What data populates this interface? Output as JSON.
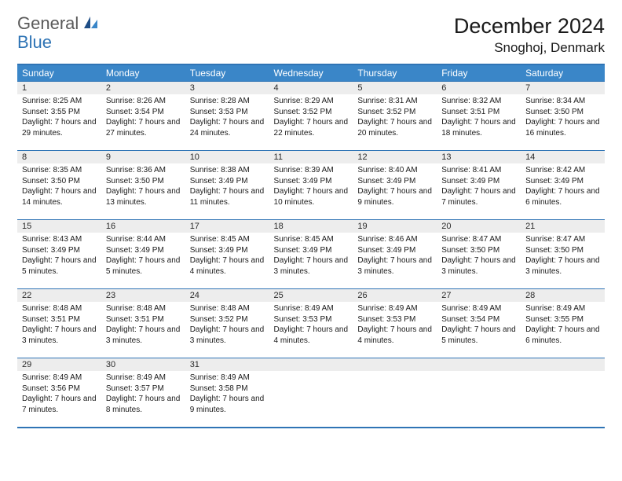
{
  "logo": {
    "line1": "General",
    "line2": "Blue"
  },
  "title": "December 2024",
  "location": "Snoghoj, Denmark",
  "colors": {
    "brand": "#2f74b5",
    "header_bg": "#3a86c8",
    "daynum_bg": "#ededed",
    "text": "#1a1a1a"
  },
  "weekday_labels": [
    "Sunday",
    "Monday",
    "Tuesday",
    "Wednesday",
    "Thursday",
    "Friday",
    "Saturday"
  ],
  "rows": [
    [
      {
        "num": "1",
        "sunrise": "Sunrise: 8:25 AM",
        "sunset": "Sunset: 3:55 PM",
        "daylight": "Daylight: 7 hours and 29 minutes."
      },
      {
        "num": "2",
        "sunrise": "Sunrise: 8:26 AM",
        "sunset": "Sunset: 3:54 PM",
        "daylight": "Daylight: 7 hours and 27 minutes."
      },
      {
        "num": "3",
        "sunrise": "Sunrise: 8:28 AM",
        "sunset": "Sunset: 3:53 PM",
        "daylight": "Daylight: 7 hours and 24 minutes."
      },
      {
        "num": "4",
        "sunrise": "Sunrise: 8:29 AM",
        "sunset": "Sunset: 3:52 PM",
        "daylight": "Daylight: 7 hours and 22 minutes."
      },
      {
        "num": "5",
        "sunrise": "Sunrise: 8:31 AM",
        "sunset": "Sunset: 3:52 PM",
        "daylight": "Daylight: 7 hours and 20 minutes."
      },
      {
        "num": "6",
        "sunrise": "Sunrise: 8:32 AM",
        "sunset": "Sunset: 3:51 PM",
        "daylight": "Daylight: 7 hours and 18 minutes."
      },
      {
        "num": "7",
        "sunrise": "Sunrise: 8:34 AM",
        "sunset": "Sunset: 3:50 PM",
        "daylight": "Daylight: 7 hours and 16 minutes."
      }
    ],
    [
      {
        "num": "8",
        "sunrise": "Sunrise: 8:35 AM",
        "sunset": "Sunset: 3:50 PM",
        "daylight": "Daylight: 7 hours and 14 minutes."
      },
      {
        "num": "9",
        "sunrise": "Sunrise: 8:36 AM",
        "sunset": "Sunset: 3:50 PM",
        "daylight": "Daylight: 7 hours and 13 minutes."
      },
      {
        "num": "10",
        "sunrise": "Sunrise: 8:38 AM",
        "sunset": "Sunset: 3:49 PM",
        "daylight": "Daylight: 7 hours and 11 minutes."
      },
      {
        "num": "11",
        "sunrise": "Sunrise: 8:39 AM",
        "sunset": "Sunset: 3:49 PM",
        "daylight": "Daylight: 7 hours and 10 minutes."
      },
      {
        "num": "12",
        "sunrise": "Sunrise: 8:40 AM",
        "sunset": "Sunset: 3:49 PM",
        "daylight": "Daylight: 7 hours and 9 minutes."
      },
      {
        "num": "13",
        "sunrise": "Sunrise: 8:41 AM",
        "sunset": "Sunset: 3:49 PM",
        "daylight": "Daylight: 7 hours and 7 minutes."
      },
      {
        "num": "14",
        "sunrise": "Sunrise: 8:42 AM",
        "sunset": "Sunset: 3:49 PM",
        "daylight": "Daylight: 7 hours and 6 minutes."
      }
    ],
    [
      {
        "num": "15",
        "sunrise": "Sunrise: 8:43 AM",
        "sunset": "Sunset: 3:49 PM",
        "daylight": "Daylight: 7 hours and 5 minutes."
      },
      {
        "num": "16",
        "sunrise": "Sunrise: 8:44 AM",
        "sunset": "Sunset: 3:49 PM",
        "daylight": "Daylight: 7 hours and 5 minutes."
      },
      {
        "num": "17",
        "sunrise": "Sunrise: 8:45 AM",
        "sunset": "Sunset: 3:49 PM",
        "daylight": "Daylight: 7 hours and 4 minutes."
      },
      {
        "num": "18",
        "sunrise": "Sunrise: 8:45 AM",
        "sunset": "Sunset: 3:49 PM",
        "daylight": "Daylight: 7 hours and 3 minutes."
      },
      {
        "num": "19",
        "sunrise": "Sunrise: 8:46 AM",
        "sunset": "Sunset: 3:49 PM",
        "daylight": "Daylight: 7 hours and 3 minutes."
      },
      {
        "num": "20",
        "sunrise": "Sunrise: 8:47 AM",
        "sunset": "Sunset: 3:50 PM",
        "daylight": "Daylight: 7 hours and 3 minutes."
      },
      {
        "num": "21",
        "sunrise": "Sunrise: 8:47 AM",
        "sunset": "Sunset: 3:50 PM",
        "daylight": "Daylight: 7 hours and 3 minutes."
      }
    ],
    [
      {
        "num": "22",
        "sunrise": "Sunrise: 8:48 AM",
        "sunset": "Sunset: 3:51 PM",
        "daylight": "Daylight: 7 hours and 3 minutes."
      },
      {
        "num": "23",
        "sunrise": "Sunrise: 8:48 AM",
        "sunset": "Sunset: 3:51 PM",
        "daylight": "Daylight: 7 hours and 3 minutes."
      },
      {
        "num": "24",
        "sunrise": "Sunrise: 8:48 AM",
        "sunset": "Sunset: 3:52 PM",
        "daylight": "Daylight: 7 hours and 3 minutes."
      },
      {
        "num": "25",
        "sunrise": "Sunrise: 8:49 AM",
        "sunset": "Sunset: 3:53 PM",
        "daylight": "Daylight: 7 hours and 4 minutes."
      },
      {
        "num": "26",
        "sunrise": "Sunrise: 8:49 AM",
        "sunset": "Sunset: 3:53 PM",
        "daylight": "Daylight: 7 hours and 4 minutes."
      },
      {
        "num": "27",
        "sunrise": "Sunrise: 8:49 AM",
        "sunset": "Sunset: 3:54 PM",
        "daylight": "Daylight: 7 hours and 5 minutes."
      },
      {
        "num": "28",
        "sunrise": "Sunrise: 8:49 AM",
        "sunset": "Sunset: 3:55 PM",
        "daylight": "Daylight: 7 hours and 6 minutes."
      }
    ],
    [
      {
        "num": "29",
        "sunrise": "Sunrise: 8:49 AM",
        "sunset": "Sunset: 3:56 PM",
        "daylight": "Daylight: 7 hours and 7 minutes."
      },
      {
        "num": "30",
        "sunrise": "Sunrise: 8:49 AM",
        "sunset": "Sunset: 3:57 PM",
        "daylight": "Daylight: 7 hours and 8 minutes."
      },
      {
        "num": "31",
        "sunrise": "Sunrise: 8:49 AM",
        "sunset": "Sunset: 3:58 PM",
        "daylight": "Daylight: 7 hours and 9 minutes."
      },
      {
        "blank": true
      },
      {
        "blank": true
      },
      {
        "blank": true
      },
      {
        "blank": true
      }
    ]
  ]
}
